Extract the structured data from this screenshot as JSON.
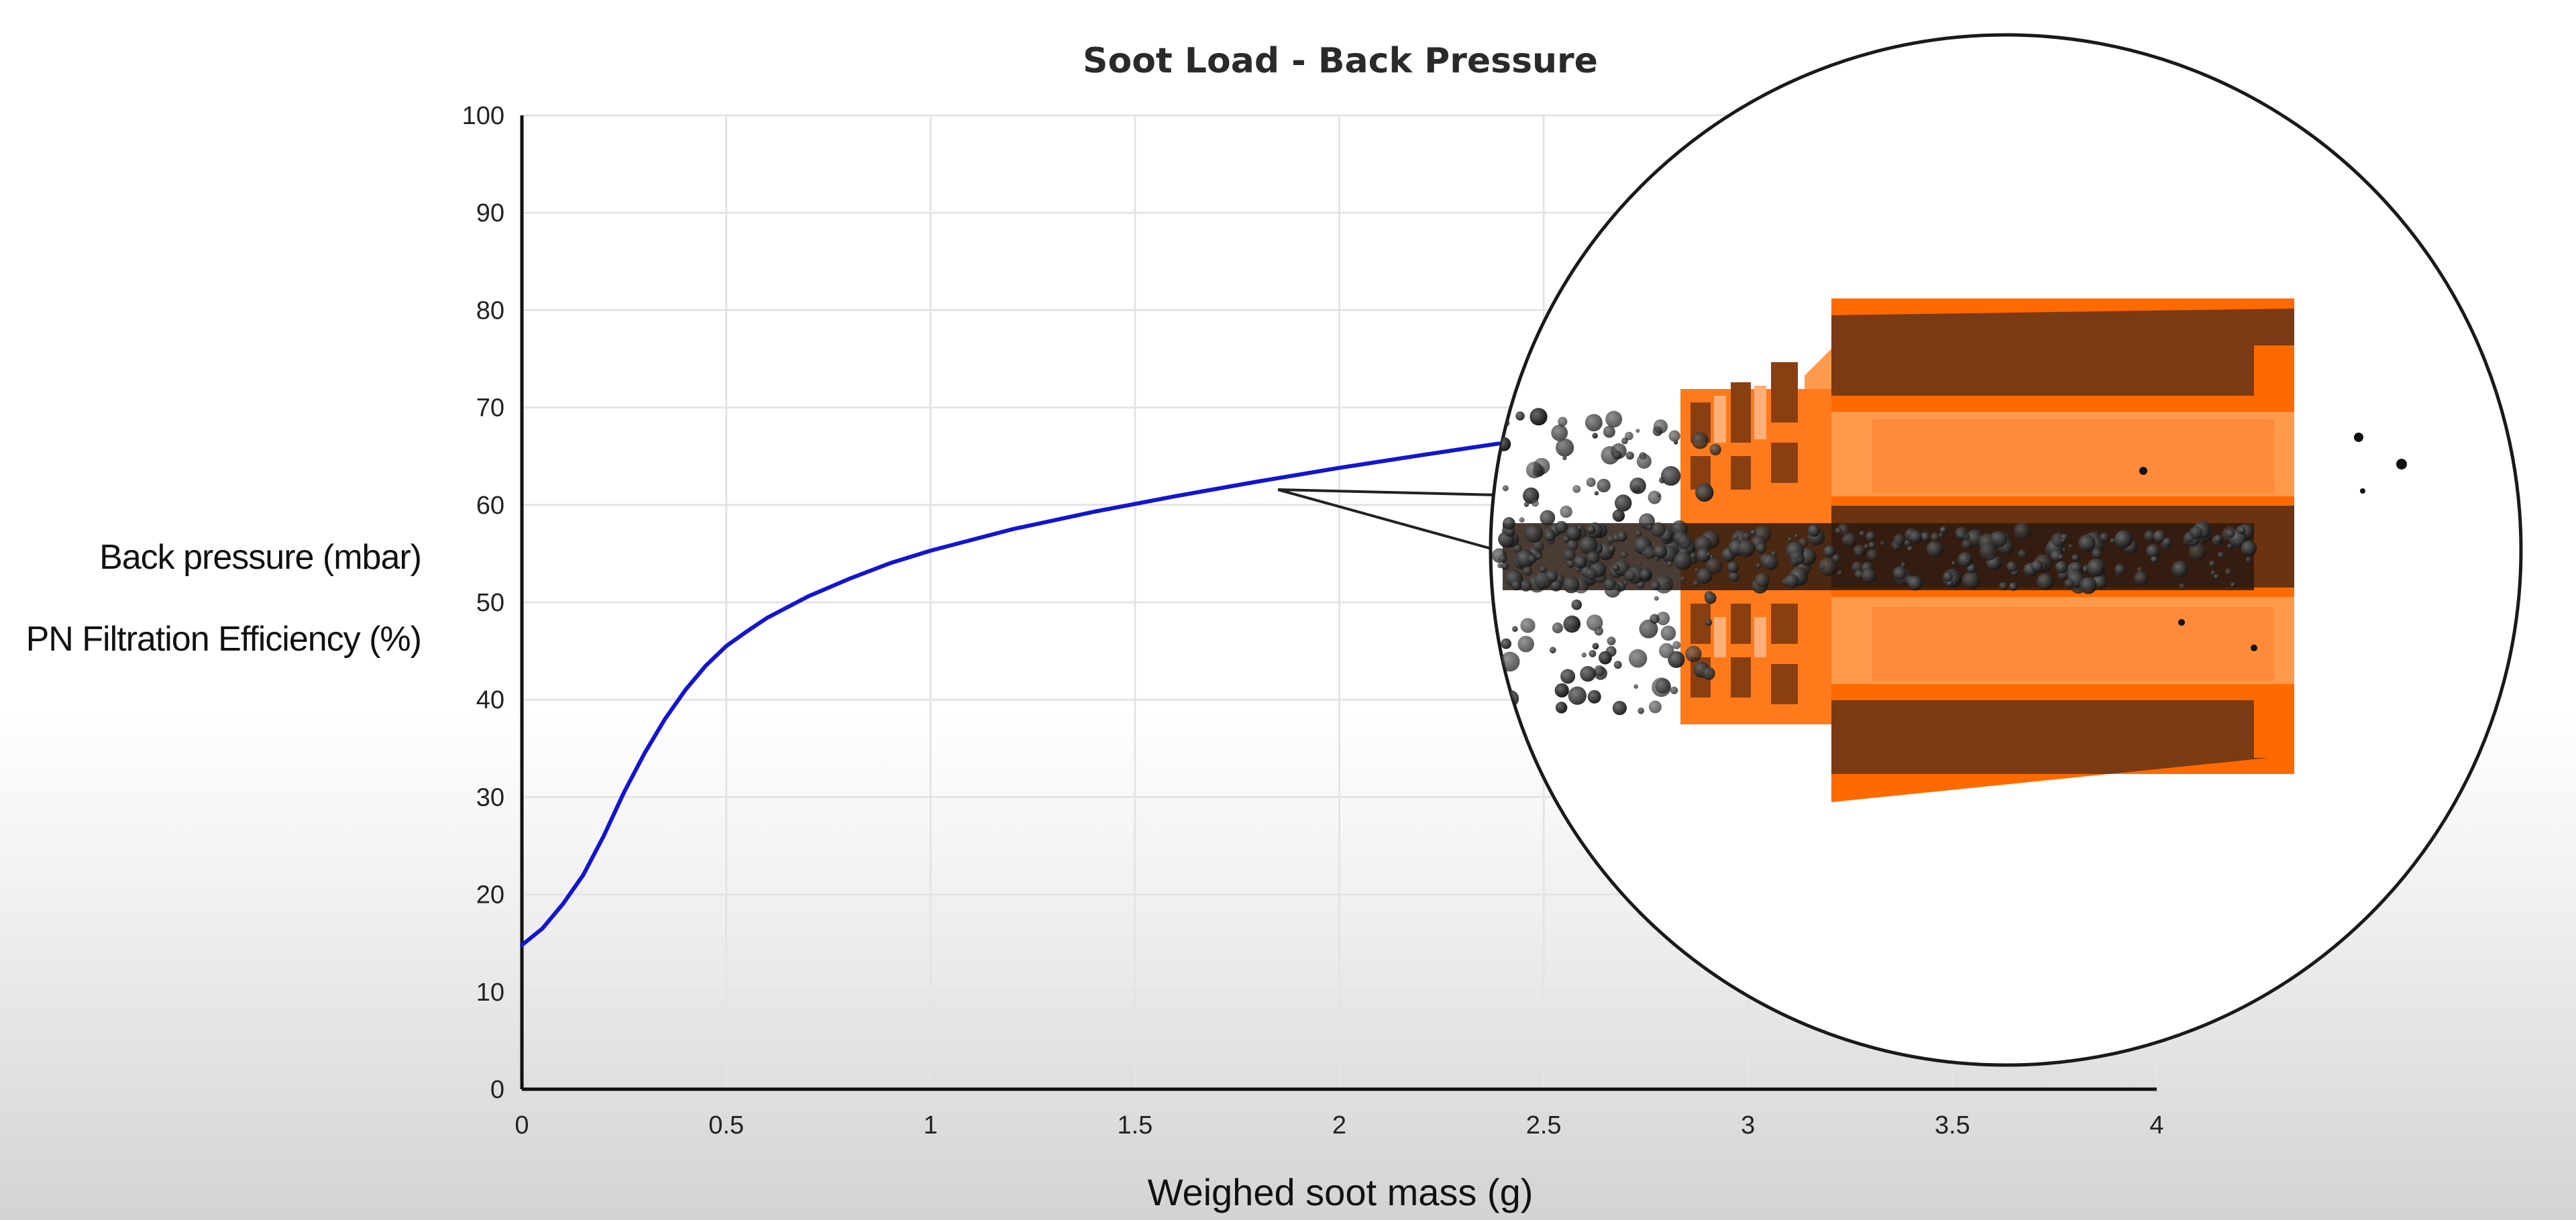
{
  "chart_data": {
    "type": "line",
    "title": "Soot Load - Back Pressure",
    "xlabel": "Weighed soot mass (g)",
    "ylabels": [
      "Back pressure  (mbar)",
      "PN Filtration Efficiency (%)"
    ],
    "xlim": [
      0,
      4
    ],
    "ylim": [
      0,
      100
    ],
    "x_ticks": [
      0,
      0.5,
      1,
      1.5,
      2,
      2.5,
      3,
      3.5,
      4
    ],
    "x_tick_labels": [
      "0",
      "0.5",
      "1",
      "1.5",
      "2",
      "2.5",
      "3",
      "3.5",
      "4"
    ],
    "y_ticks": [
      0,
      10,
      20,
      30,
      40,
      50,
      60,
      70,
      80,
      90,
      100
    ],
    "grid": true,
    "series": [
      {
        "color": "#1414d2",
        "x": [
          0,
          0.05,
          0.1,
          0.15,
          0.2,
          0.25,
          0.3,
          0.35,
          0.4,
          0.45,
          0.5,
          0.55,
          0.6,
          0.7,
          0.8,
          0.9,
          1.0,
          1.2,
          1.4,
          1.6,
          1.8,
          2.0,
          2.2,
          2.39
        ],
        "y": [
          14.8,
          16.5,
          19,
          22,
          26,
          30.5,
          34.5,
          38,
          41,
          43.5,
          45.5,
          47,
          48.4,
          50.6,
          52.4,
          54,
          55.3,
          57.5,
          59.3,
          60.9,
          62.4,
          63.8,
          65.1,
          66.3
        ]
      }
    ]
  },
  "inset": {
    "description_colors": {
      "filter_orange": "#ff6a00",
      "filter_light": "#ff9a4d",
      "filter_dark": "#7a3a14",
      "soot": "#1a1a1a"
    }
  }
}
